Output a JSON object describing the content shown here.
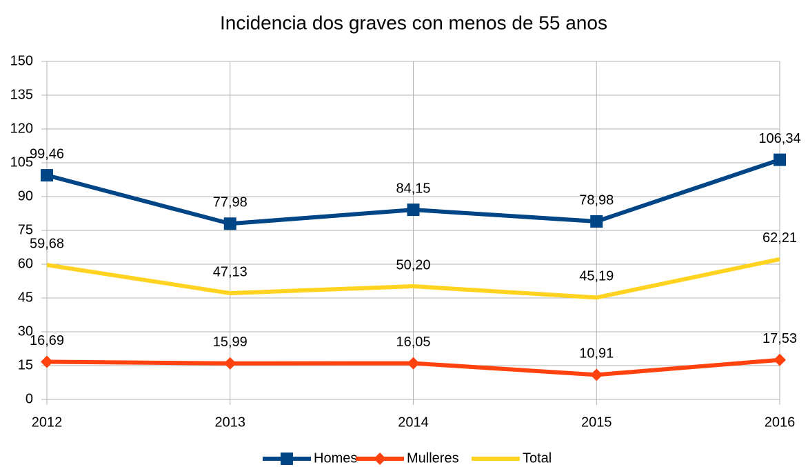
{
  "chart_data": {
    "type": "line",
    "title": "Incidencia dos graves con menos de 55 anos",
    "categories": [
      "2012",
      "2013",
      "2014",
      "2015",
      "2016"
    ],
    "series": [
      {
        "name": "Homes",
        "color": "#004586",
        "marker": "square",
        "values": [
          99.46,
          77.98,
          84.15,
          78.98,
          106.34
        ],
        "value_labels": [
          "99,46",
          "77,98",
          "84,15",
          "78,98",
          "106,34"
        ]
      },
      {
        "name": "Mulleres",
        "color": "#ff420e",
        "marker": "diamond",
        "values": [
          16.69,
          15.99,
          16.05,
          10.91,
          17.53
        ],
        "value_labels": [
          "16,69",
          "15,99",
          "16,05",
          "10,91",
          "17,53"
        ]
      },
      {
        "name": "Total",
        "color": "#ffd320",
        "marker": "none",
        "values": [
          59.68,
          47.13,
          50.2,
          45.19,
          62.21
        ],
        "value_labels": [
          "59,68",
          "47,13",
          "50,20",
          "45,19",
          "62,21"
        ]
      }
    ],
    "ylim": [
      0,
      150
    ],
    "yticks": [
      0,
      15,
      30,
      45,
      60,
      75,
      90,
      105,
      120,
      135,
      150
    ],
    "grid": true,
    "legend": "bottom"
  }
}
